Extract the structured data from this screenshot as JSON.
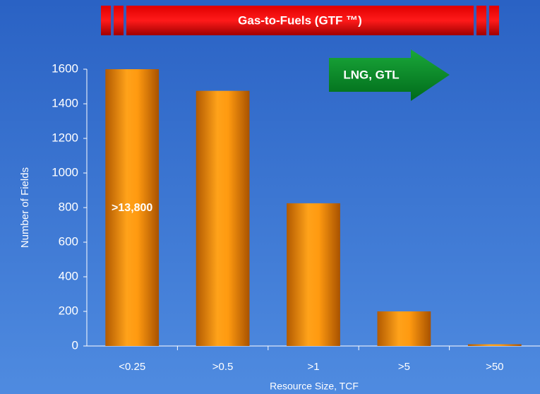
{
  "chart_data": {
    "type": "bar",
    "title": "Gas-to-Fuels (GTF ™)",
    "x_label": "Resource Size, TCF",
    "y_label": "Number of Fields",
    "categories": [
      "<0.25",
      ">0.5",
      ">1",
      ">5",
      ">50"
    ],
    "values": [
      1600,
      1475,
      825,
      200,
      10
    ],
    "color": "#f39200",
    "ylim": [
      0,
      1600
    ],
    "yticks": [
      0,
      200,
      400,
      600,
      800,
      1000,
      1200,
      1400,
      1600
    ],
    "annotations": [
      ">13,800",
      "LNG, GTL"
    ]
  }
}
